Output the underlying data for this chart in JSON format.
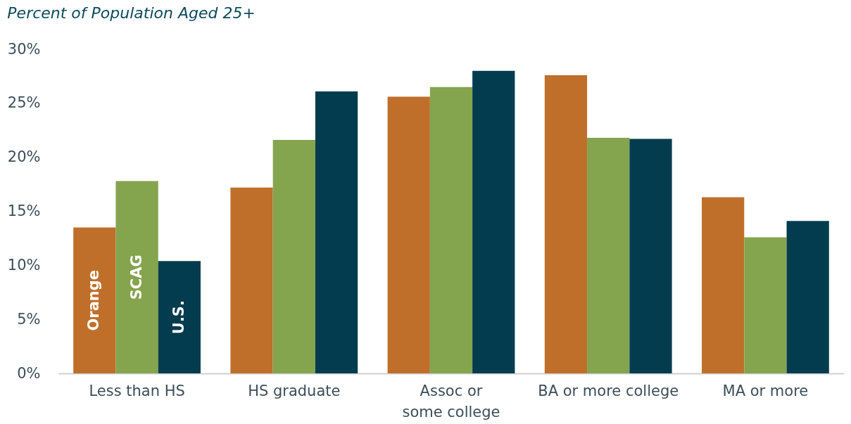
{
  "chart_data": {
    "type": "bar",
    "title": "Percent of Population Aged 25+",
    "categories": [
      "Less than HS",
      "HS graduate",
      "Assoc or\nsome college",
      "BA or more college",
      "MA or more"
    ],
    "series": [
      {
        "name": "Orange",
        "color": "#bf6f2a",
        "values": [
          13.5,
          17.2,
          25.6,
          27.6,
          16.3
        ]
      },
      {
        "name": "SCAG",
        "color": "#84a44e",
        "values": [
          17.8,
          21.6,
          26.5,
          21.8,
          12.6
        ]
      },
      {
        "name": "U.S.",
        "color": "#033c4e",
        "values": [
          10.4,
          26.1,
          28.0,
          21.7,
          14.1
        ]
      }
    ],
    "ylim": [
      0,
      30
    ],
    "yticks": [
      {
        "value": 0,
        "label": "0%"
      },
      {
        "value": 5,
        "label": "5%"
      },
      {
        "value": 10,
        "label": "10%"
      },
      {
        "value": 15,
        "label": "15%"
      },
      {
        "value": 20,
        "label": "20%"
      },
      {
        "value": 25,
        "label": "25%"
      },
      {
        "value": 30,
        "label": "30%"
      }
    ],
    "grid": false
  }
}
